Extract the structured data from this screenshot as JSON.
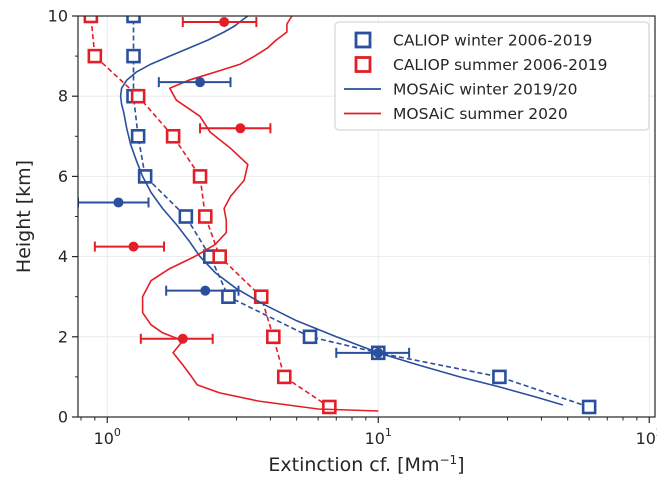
{
  "chart_data": {
    "type": "line",
    "xlabel": "Extinction cf. [Mm",
    "xlabel_sup": "−1",
    "xlabel_end": "]",
    "ylabel": "Height [km]",
    "xscale": "log",
    "xlim": [
      0.78,
      105
    ],
    "ylim": [
      0,
      10
    ],
    "grid": true,
    "legend_position": "top-right",
    "x_tick_labels": [
      {
        "value": 1,
        "base": "10",
        "exp": "0"
      },
      {
        "value": 10,
        "base": "10",
        "exp": "1"
      },
      {
        "value": 100,
        "base": "10",
        "exp": "2"
      }
    ],
    "y_tick_labels": [
      "0",
      "2",
      "4",
      "6",
      "8",
      "10"
    ],
    "colors": {
      "blue": "#2a4f9c",
      "red": "#e41e26"
    },
    "series": [
      {
        "name": "CALIOP winter 2006-2019",
        "style": "squares-dashed",
        "color": "#2a4f9c",
        "x": [
          60,
          28,
          10,
          5.6,
          2.8,
          2.4,
          1.95,
          1.38,
          1.3,
          1.25,
          1.25,
          1.25
        ],
        "y": [
          0.25,
          1.0,
          1.6,
          2.0,
          3.0,
          4.0,
          5.0,
          6.0,
          7.0,
          8.0,
          9.0,
          10.0
        ]
      },
      {
        "name": "CALIOP summer 2006-2019",
        "style": "squares-dashed",
        "color": "#e41e26",
        "x": [
          6.6,
          4.5,
          4.1,
          3.7,
          2.6,
          2.3,
          2.2,
          1.75,
          1.3,
          0.9,
          0.87
        ],
        "y": [
          0.25,
          1.0,
          2.0,
          3.0,
          4.0,
          5.0,
          6.0,
          7.0,
          8.0,
          9.0,
          10.0
        ]
      },
      {
        "name": "MOSAiC winter 2019/20",
        "style": "line",
        "color": "#2a4f9c",
        "x": [
          48,
          38,
          28,
          20,
          14,
          10,
          7.0,
          5.0,
          3.8,
          3.0,
          2.5,
          2.2,
          2.0,
          1.8,
          1.6,
          1.45,
          1.35,
          1.28,
          1.22,
          1.18,
          1.15,
          1.13,
          1.12,
          1.13,
          1.18,
          1.28,
          1.45,
          1.7,
          2.0,
          2.35,
          2.7,
          2.95,
          3.15,
          3.3
        ],
        "y": [
          0.3,
          0.5,
          0.75,
          1.0,
          1.3,
          1.6,
          2.0,
          2.4,
          2.8,
          3.2,
          3.6,
          4.0,
          4.4,
          4.8,
          5.2,
          5.6,
          6.0,
          6.4,
          6.8,
          7.2,
          7.6,
          7.8,
          8.0,
          8.2,
          8.4,
          8.6,
          8.8,
          9.0,
          9.2,
          9.4,
          9.6,
          9.75,
          9.9,
          10.0
        ]
      },
      {
        "name": "MOSAiC summer 2020",
        "style": "line",
        "color": "#e41e26",
        "x": [
          10,
          6.0,
          3.6,
          2.6,
          2.15,
          2.05,
          1.9,
          1.75,
          1.9,
          1.6,
          1.45,
          1.35,
          1.35,
          1.45,
          1.7,
          2.1,
          2.5,
          2.75,
          2.75,
          2.7,
          2.85,
          3.2,
          3.3,
          2.85,
          2.4,
          2.2,
          1.8,
          1.7,
          2.0,
          2.5,
          3.1,
          3.5,
          3.9,
          4.2,
          4.6,
          4.6,
          4.8
        ],
        "y": [
          0.15,
          0.2,
          0.4,
          0.6,
          0.8,
          1.0,
          1.3,
          1.6,
          1.9,
          2.1,
          2.3,
          2.6,
          3.0,
          3.4,
          3.7,
          4.0,
          4.3,
          4.6,
          4.9,
          5.2,
          5.5,
          5.9,
          6.3,
          6.7,
          7.1,
          7.5,
          7.9,
          8.2,
          8.4,
          8.6,
          8.8,
          9.0,
          9.2,
          9.4,
          9.6,
          9.8,
          10.0
        ]
      },
      {
        "name": "",
        "style": "points-errorbars",
        "color": "#2a4f9c",
        "x": [
          10,
          2.3,
          1.1,
          2.2
        ],
        "y": [
          1.6,
          3.15,
          5.35,
          8.35
        ],
        "xerr_low": [
          7.0,
          1.65,
          0.78,
          1.55
        ],
        "xerr_high": [
          13.0,
          3.05,
          1.42,
          2.85
        ]
      },
      {
        "name": "",
        "style": "points-errorbars",
        "color": "#e41e26",
        "x": [
          1.9,
          1.25,
          3.1,
          2.7
        ],
        "y": [
          1.95,
          4.25,
          7.2,
          9.85
        ],
        "xerr_low": [
          1.33,
          0.9,
          2.2,
          1.9
        ],
        "xerr_high": [
          2.45,
          1.62,
          4.0,
          3.55
        ]
      }
    ]
  }
}
